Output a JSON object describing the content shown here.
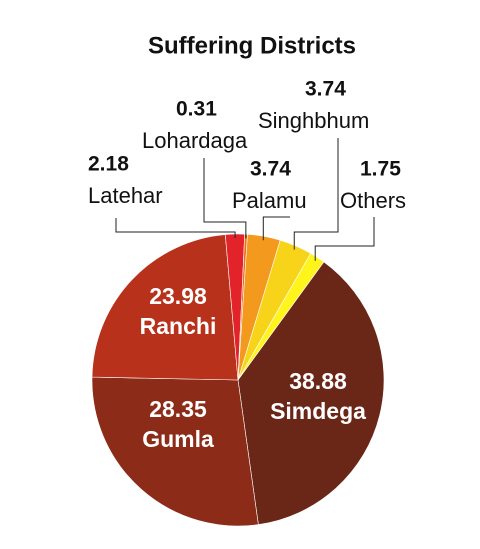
{
  "chart_data": {
    "type": "pie",
    "title": "Suffering Districts",
    "categories": [
      "Simdega",
      "Gumla",
      "Ranchi",
      "Latehar",
      "Lohardaga",
      "Palamu",
      "Singhbhum",
      "Others"
    ],
    "values": [
      38.88,
      28.35,
      23.98,
      2.18,
      0.31,
      3.74,
      3.74,
      1.75
    ],
    "colors": [
      "#6a2616",
      "#8b2b18",
      "#b7311b",
      "#e3232a",
      "#f26b1d",
      "#f39a1e",
      "#f7d41a",
      "#fff41c"
    ]
  }
}
